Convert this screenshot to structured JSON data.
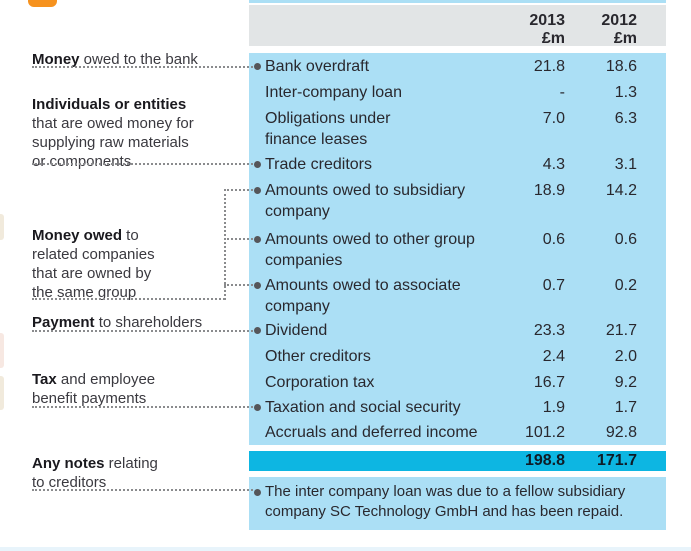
{
  "colors": {
    "table_body": "#abdff5",
    "table_header": "#e2e5e6",
    "total_band": "#0db6e2",
    "accent_orange": "#f6921e",
    "text_dark": "#29282e",
    "total_text": "#0f1b26",
    "bullet_gray": "#55565a",
    "dots_gray": "#8a8b8d"
  },
  "table": {
    "columns": [
      {
        "year": "2013",
        "unit": "£m"
      },
      {
        "year": "2012",
        "unit": "£m"
      }
    ],
    "rows": [
      {
        "label_lines": [
          "Bank overdraft"
        ],
        "values": [
          "21.8",
          "18.6"
        ],
        "bullet": true
      },
      {
        "label_lines": [
          "Inter-company loan"
        ],
        "values": [
          "-",
          "1.3"
        ],
        "bullet": false
      },
      {
        "label_lines": [
          "Obligations under",
          "finance leases"
        ],
        "values": [
          "7.0",
          "6.3"
        ],
        "bullet": false
      },
      {
        "label_lines": [
          "Trade creditors"
        ],
        "values": [
          "4.3",
          "3.1"
        ],
        "bullet": true
      },
      {
        "label_lines": [
          "Amounts owed to subsidiary",
          "company"
        ],
        "values": [
          "18.9",
          "14.2"
        ],
        "bullet": true
      },
      {
        "label_lines": [
          "Amounts owed to other group",
          "companies"
        ],
        "values": [
          "0.6",
          "0.6"
        ],
        "bullet": true
      },
      {
        "label_lines": [
          "Amounts owed to associate",
          "company"
        ],
        "values": [
          "0.7",
          "0.2"
        ],
        "bullet": true
      },
      {
        "label_lines": [
          "Dividend"
        ],
        "values": [
          "23.3",
          "21.7"
        ],
        "bullet": true
      },
      {
        "label_lines": [
          "Other creditors"
        ],
        "values": [
          "2.4",
          "2.0"
        ],
        "bullet": false
      },
      {
        "label_lines": [
          "Corporation tax"
        ],
        "values": [
          "16.7",
          "9.2"
        ],
        "bullet": false
      },
      {
        "label_lines": [
          "Taxation and social security"
        ],
        "values": [
          "1.9",
          "1.7"
        ],
        "bullet": true
      },
      {
        "label_lines": [
          "Accruals and deferred income"
        ],
        "values": [
          "101.2",
          "92.8"
        ],
        "bullet": false
      }
    ],
    "total": {
      "values": [
        "198.8",
        "171.7"
      ]
    },
    "note": {
      "bullet": true,
      "lines": [
        "The inter company loan was due to a fellow subsidiary",
        "company SC Technology GmbH and has been repaid."
      ]
    }
  },
  "annotations": [
    {
      "bold": "Money",
      "after": " owed to the bank",
      "extra_lines": []
    },
    {
      "bold": "Individuals or entities",
      "after": "",
      "extra_lines": [
        "that are owed money for",
        "supplying raw materials",
        "or components"
      ]
    },
    {
      "bold": "Money owed",
      "after": " to",
      "extra_lines": [
        "related companies",
        "that are owned by",
        "the same group"
      ]
    },
    {
      "bold": "Payment",
      "after": " to shareholders",
      "extra_lines": []
    },
    {
      "bold": "Tax",
      "after": " and employee",
      "extra_lines": [
        "benefit payments"
      ]
    },
    {
      "bold": "Any notes",
      "after": " relating",
      "extra_lines": [
        "to creditors"
      ]
    }
  ]
}
